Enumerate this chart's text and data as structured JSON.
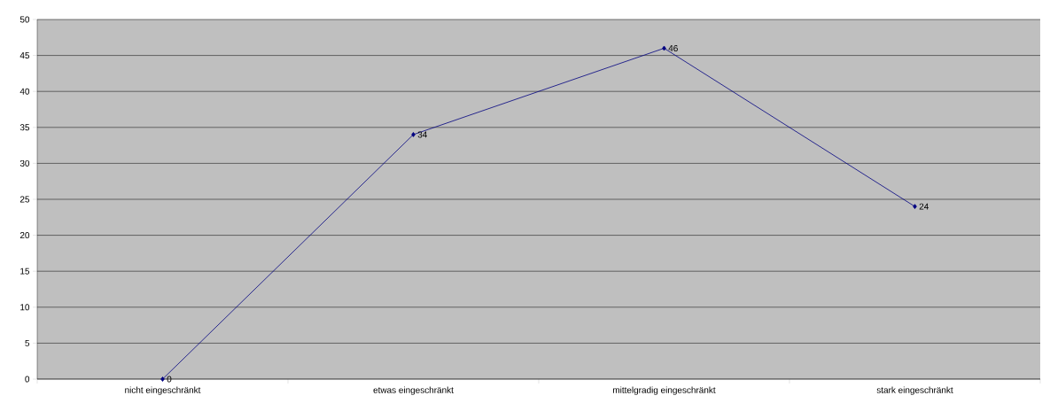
{
  "chart_data": {
    "type": "line",
    "categories": [
      "nicht eingeschränkt",
      "etwas eingeschränkt",
      "mittelgradig eingeschränkt",
      "stark eingeschränkt"
    ],
    "values": [
      0,
      34,
      46,
      24
    ],
    "color": "#000080",
    "marker": "diamond",
    "data_labels": true,
    "grid": "y",
    "ylim": [
      0,
      50
    ],
    "yticks": [
      0,
      5,
      10,
      15,
      20,
      25,
      30,
      35,
      40,
      45,
      50
    ]
  }
}
